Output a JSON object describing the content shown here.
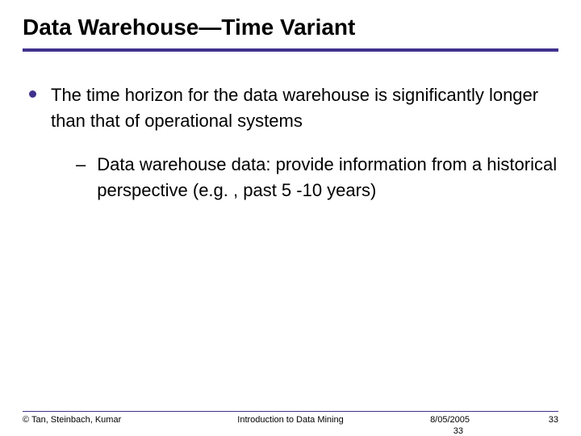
{
  "title": "Data Warehouse—Time Variant",
  "bullets": [
    {
      "text": "The time horizon for the data warehouse is significantly longer than that of operational systems",
      "sub": [
        "Data warehouse data: provide information from a historical perspective (e.g. , past 5 -10 years)"
      ]
    }
  ],
  "footer": {
    "copyright": "© Tan, Steinbach, Kumar",
    "center": "Introduction to Data Mining",
    "date": "8/05/2005",
    "page": "33",
    "extra_page": "33"
  },
  "colors": {
    "accent": "#40318d",
    "text": "#000000",
    "background": "#ffffff"
  }
}
